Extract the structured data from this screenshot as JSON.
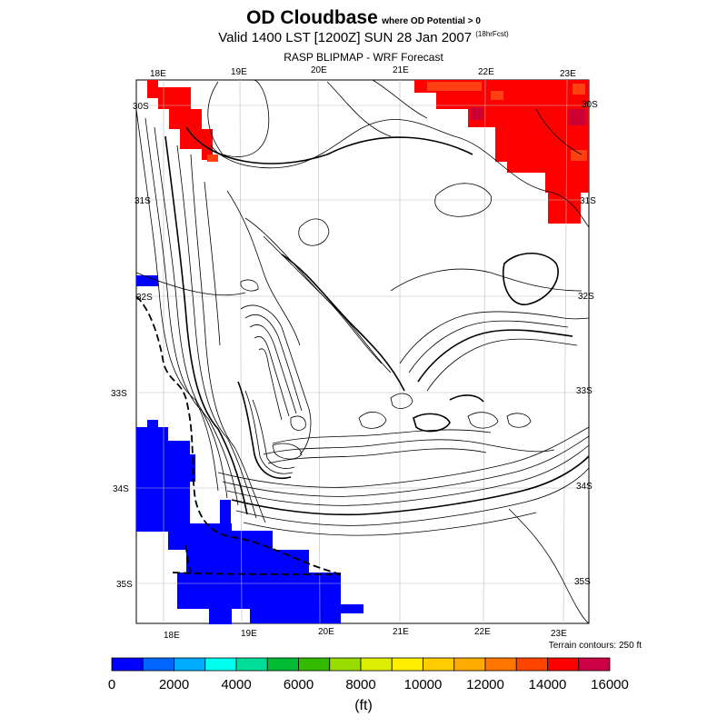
{
  "header": {
    "title": "OD Cloudbase",
    "title_note": "where OD Potential > 0",
    "valid_line": "Valid 1400 LST [1200Z] SUN 28 Jan 2007",
    "forecast_tag": "(18hrFcst)",
    "model_line": "RASP BLIPMAP - WRF Forecast"
  },
  "map": {
    "lon_labels_top": [
      "18E",
      "19E",
      "20E",
      "21E",
      "22E",
      "23E"
    ],
    "lon_labels_bottom": [
      "18E",
      "19E",
      "20E",
      "21E",
      "22E",
      "23E"
    ],
    "lat_labels_left": [
      "30S",
      "31S",
      "32S",
      "33S",
      "34S",
      "35S"
    ],
    "lat_labels_right": [
      "30S",
      "31S",
      "32S",
      "33S",
      "34S",
      "35S"
    ],
    "terrain_note": "Terrain contours: 250 ft",
    "colors": {
      "red": "#ff0000",
      "orange_red": "#ff4010",
      "dark_red": "#cc0033",
      "blue": "#0000ff"
    }
  },
  "colorbar": {
    "colors": [
      "#0000ff",
      "#0066ff",
      "#00aaff",
      "#00ffee",
      "#00dd99",
      "#00bb33",
      "#33bb00",
      "#99dd00",
      "#ddee00",
      "#ffee00",
      "#ffcc00",
      "#ffaa00",
      "#ff7700",
      "#ff4400",
      "#ff0000",
      "#cc0044"
    ],
    "tick_labels": [
      "0",
      "2000",
      "4000",
      "6000",
      "8000",
      "10000",
      "12000",
      "14000",
      "16000"
    ],
    "unit": "(ft)"
  }
}
